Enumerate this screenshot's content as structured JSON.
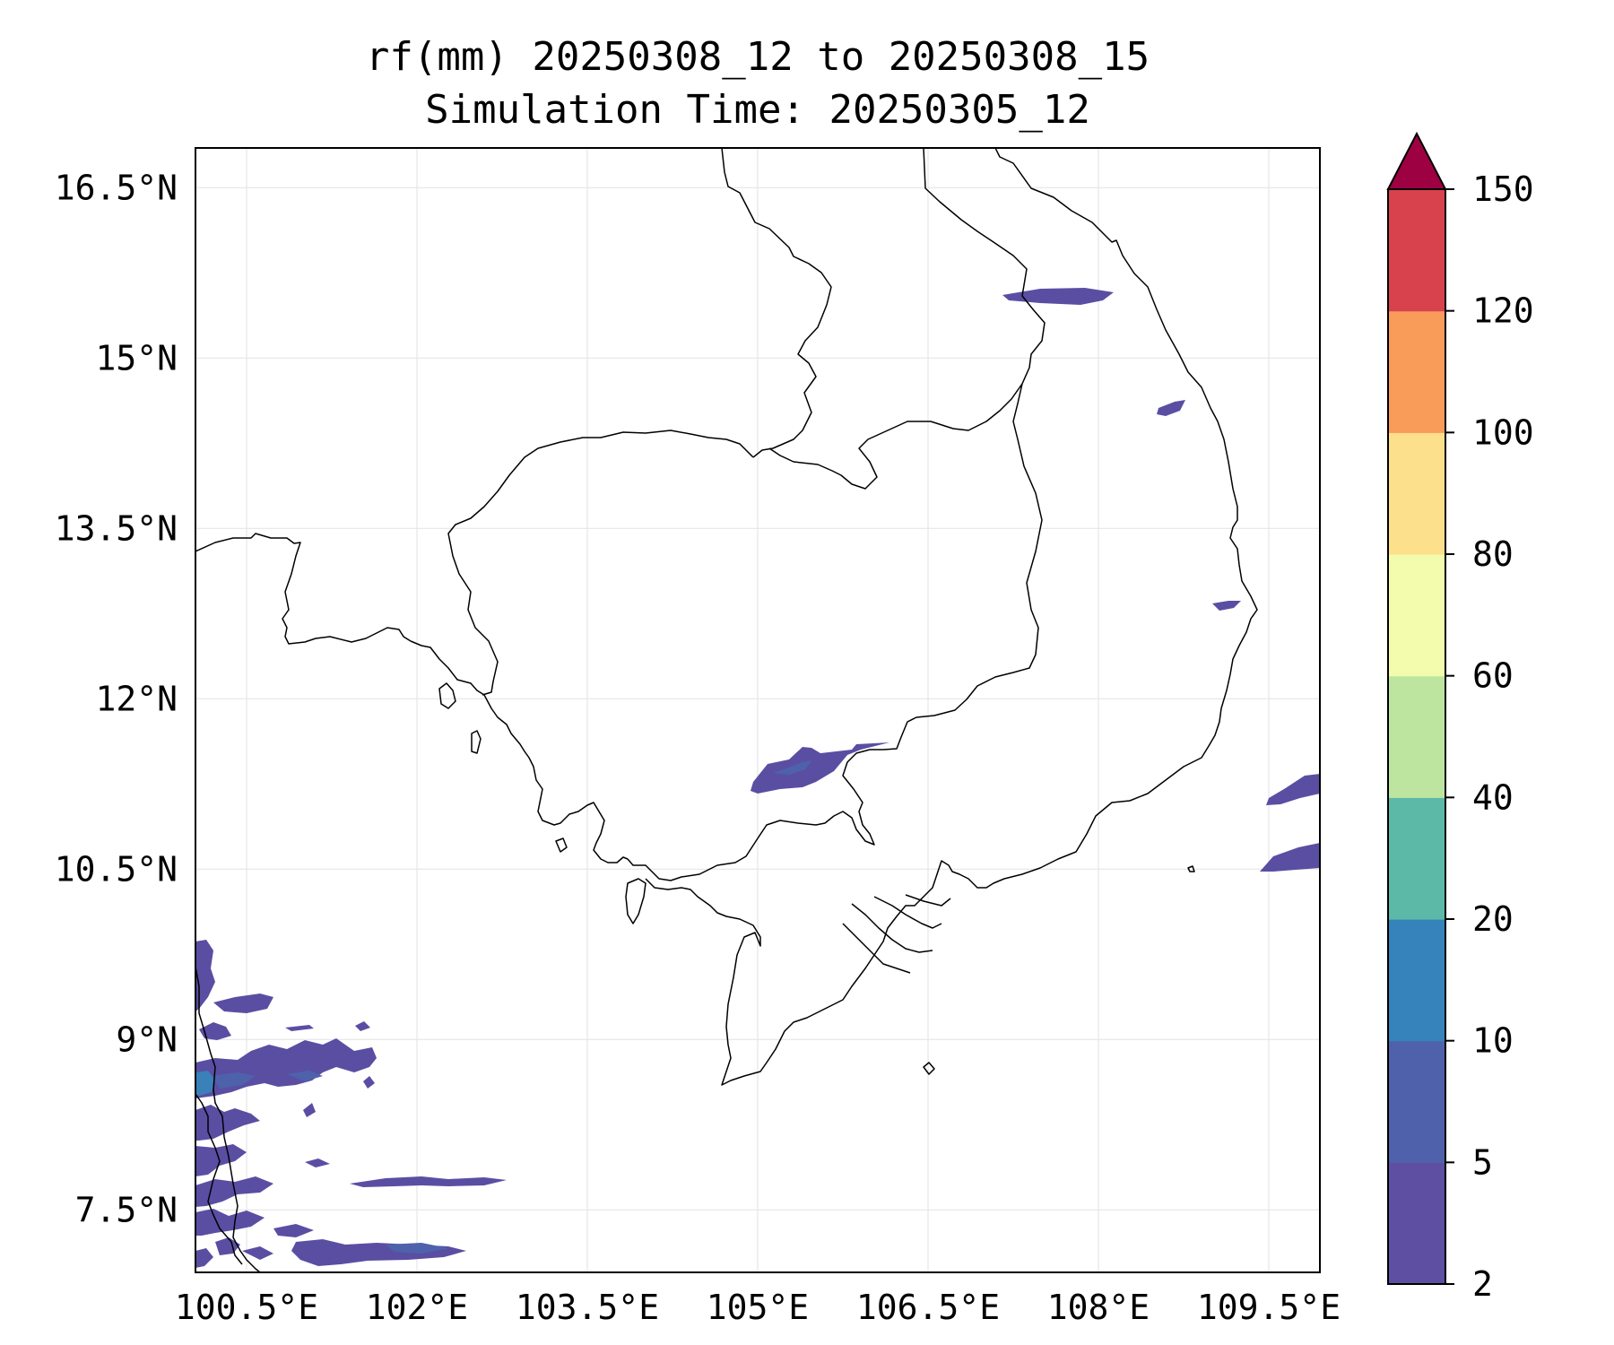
{
  "title": {
    "line1": "rf(mm) 20250308_12 to 20250308_15",
    "line2": "Simulation Time: 20250305_12"
  },
  "map": {
    "lon_range": [
      100.05,
      109.95
    ],
    "lat_range": [
      6.95,
      16.85
    ],
    "x_ticks": [
      100.5,
      102,
      103.5,
      105,
      106.5,
      108,
      109.5
    ],
    "x_tick_labels": [
      "100.5°E",
      "102°E",
      "103.5°E",
      "105°E",
      "106.5°E",
      "108°E",
      "109.5°E"
    ],
    "y_ticks": [
      7.5,
      9,
      10.5,
      12,
      13.5,
      15,
      16.5
    ],
    "y_tick_labels": [
      "7.5°N",
      "9°N",
      "10.5°N",
      "12°N",
      "13.5°N",
      "15°N",
      "16.5°N"
    ],
    "gridlines": true
  },
  "colorbar": {
    "levels": [
      2,
      5,
      10,
      20,
      40,
      60,
      80,
      100,
      120,
      150
    ],
    "labels": [
      "2",
      "5",
      "10",
      "20",
      "40",
      "60",
      "80",
      "100",
      "120",
      "150"
    ],
    "colors": [
      "#5e4fa2",
      "#4f61aa",
      "#3682ba",
      "#5cb9a7",
      "#bee5a0",
      "#f3fbad",
      "#fde08b",
      "#f99b59",
      "#d7424d",
      "#9e0142"
    ],
    "extend": "max"
  },
  "rain_colors": {
    "light": "#5a4ea3",
    "moderate": "#4e62ac",
    "heavy": "#3a80b9"
  }
}
